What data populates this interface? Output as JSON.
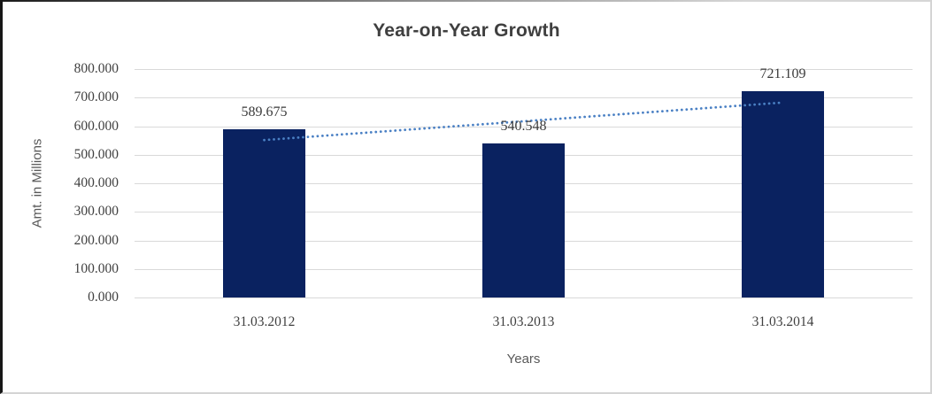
{
  "chart_data": {
    "type": "bar",
    "title": "Year-on-Year Growth",
    "xlabel": "Years",
    "ylabel": "Amt. in Millions",
    "categories": [
      "31.03.2012",
      "31.03.2013",
      "31.03.2014"
    ],
    "values": [
      589.675,
      540.548,
      721.109
    ],
    "data_labels": [
      "589.675",
      "540.548",
      "721.109"
    ],
    "ylim": [
      0,
      800
    ],
    "ytick_interval": 100,
    "ytick_labels": [
      "800.000",
      "700.000",
      "600.000",
      "500.000",
      "400.000",
      "300.000",
      "200.000",
      "100.000",
      "0.000"
    ],
    "grid": true,
    "legend": "none",
    "bar_color": "#0a2260",
    "trendline": {
      "type": "linear",
      "style": "dotted",
      "color": "#4a80c4",
      "start_value": 551.4,
      "end_value": 682.8
    },
    "colors": {
      "gridline": "#d9d9d9",
      "title_text": "#3f3f3f",
      "tick_text": "#404040",
      "axis_title_text": "#595959",
      "data_label_text": "#3a3a3a"
    }
  }
}
